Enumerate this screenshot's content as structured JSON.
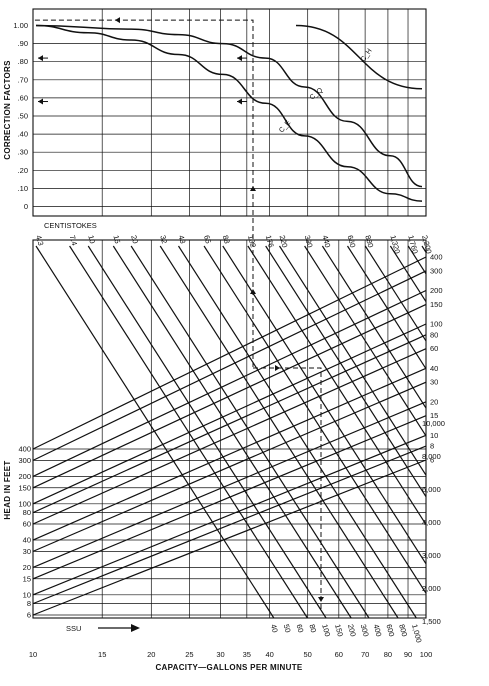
{
  "chart_data": [
    {
      "type": "line",
      "panel": "correction-factors",
      "ylabel": "CORRECTION FACTORS",
      "y_ticks": [
        "1.00",
        ".90",
        ".80",
        ".70",
        ".60",
        ".50",
        ".40",
        ".30",
        ".20",
        ".10",
        "0"
      ],
      "ylim": [
        0,
        1.06
      ],
      "x_scale": "log",
      "xlim": [
        4.3,
        2200
      ],
      "series": [
        {
          "name": "C_H",
          "points": [
            [
              287,
              1.0
            ],
            [
              2200,
              0.65
            ]
          ]
        },
        {
          "name": "C_Q",
          "points": [
            [
              4.3,
              1.0
            ],
            [
              20,
              0.98
            ],
            [
              43,
              0.95
            ],
            [
              88,
              0.9
            ],
            [
              176,
              0.82
            ],
            [
              330,
              0.66
            ],
            [
              660,
              0.47
            ],
            [
              1320,
              0.28
            ],
            [
              2200,
              0.11
            ]
          ]
        },
        {
          "name": "C_E",
          "points": [
            [
              4.3,
              1.0
            ],
            [
              10,
              0.96
            ],
            [
              20,
              0.92
            ],
            [
              43,
              0.84
            ],
            [
              88,
              0.73
            ],
            [
              176,
              0.57
            ],
            [
              330,
              0.39
            ],
            [
              660,
              0.22
            ],
            [
              1320,
              0.07
            ],
            [
              2200,
              0.03
            ]
          ]
        }
      ],
      "annotations": {
        "example_path_correction_factor": 1.03
      }
    },
    {
      "type": "nomogram",
      "panel": "viscosity-head-capacity",
      "xlabel": "CAPACITY—GALLONS PER MINUTE",
      "ylabel": "HEAD IN FEET",
      "x_scale": "log",
      "xlim": [
        10,
        100
      ],
      "x_ticks": [
        "10",
        "15",
        "20",
        "25",
        "30",
        "35",
        "40",
        "50",
        "60",
        "70",
        "80",
        "90",
        "100"
      ],
      "head_left_ticks": [
        "400",
        "300",
        "200",
        "150",
        "100",
        "80",
        "60",
        "40",
        "30",
        "20",
        "15",
        "10",
        "8",
        "6"
      ],
      "head_right_ticks": [
        "400",
        "300",
        "200",
        "150",
        "100",
        "80",
        "60",
        "40",
        "30",
        "20",
        "15",
        "10",
        "8",
        "6"
      ],
      "centistokes_label": "CENTISTOKES",
      "centistokes": [
        "4.3",
        "7.4",
        "10",
        "15",
        "20",
        "32",
        "43",
        "65",
        "88",
        "132",
        "176",
        "220",
        "330",
        "440",
        "660",
        "880",
        "1,320",
        "1,760",
        "2,200"
      ],
      "ssu_label": "SSU",
      "ssu_bottom": [
        "40",
        "50",
        "60",
        "80",
        "100",
        "150",
        "200",
        "300",
        "400",
        "600",
        "800",
        "1,000"
      ],
      "ssu_right": [
        "1,500",
        "2,000",
        "3,000",
        "4,000",
        "6,000",
        "8,000",
        "10,000"
      ]
    }
  ]
}
